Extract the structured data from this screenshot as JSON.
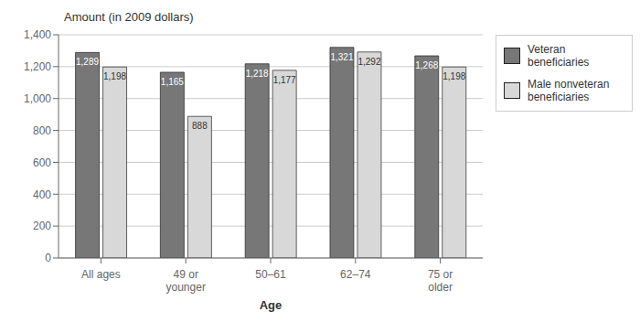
{
  "chart_data": {
    "type": "bar",
    "title": "Amount (in 2009 dollars)",
    "x_label": "Age",
    "categories": [
      "All ages",
      "49 or\nyounger",
      "50–61",
      "62–74",
      "75 or\nolder"
    ],
    "series": [
      {
        "name": "Veteran\nbeneficiaries",
        "color": "#777777",
        "values": [
          1289,
          1165,
          1218,
          1321,
          1268
        ],
        "value_labels": [
          "1,289",
          "1,165",
          "1,218",
          "1,321",
          "1,268"
        ]
      },
      {
        "name": "Male nonveteran\nbeneficiaries",
        "color": "#d8d8d8",
        "values": [
          1198,
          888,
          1177,
          1292,
          1198
        ],
        "value_labels": [
          "1,198",
          "888",
          "1,177",
          "1,292",
          "1,198"
        ]
      }
    ],
    "ylim": [
      0,
      1400
    ],
    "yticks": [
      0,
      200,
      400,
      600,
      800,
      {
        "value": 1000,
        "label": "1,000"
      },
      {
        "value": 1200,
        "label": "1,200"
      },
      {
        "value": 1400,
        "label": "1,400"
      }
    ],
    "grid": true,
    "legend": "right",
    "data_labels": true
  }
}
